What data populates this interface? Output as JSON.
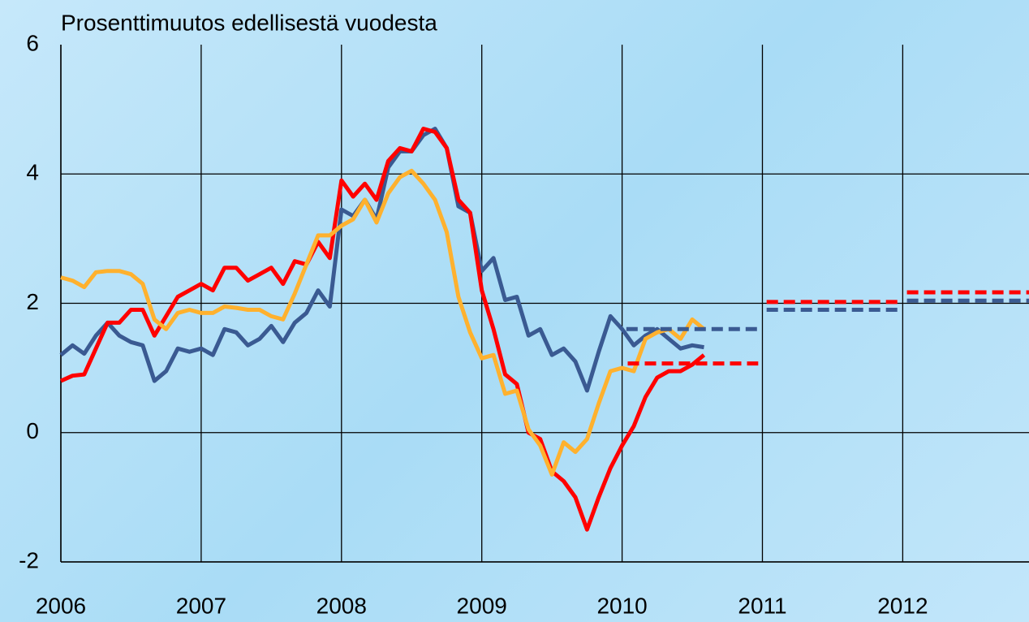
{
  "chart_data": {
    "type": "line",
    "title": "Prosenttimuutos edellisestä vuodesta",
    "xlim": [
      2006,
      2012.9
    ],
    "xticks": [
      2006,
      2007,
      2008,
      2009,
      2010,
      2011,
      2012
    ],
    "ylim": [
      -2,
      6
    ],
    "yticks": [
      -2,
      0,
      2,
      4,
      6
    ],
    "grid": true,
    "series": [
      {
        "color": "#3a5a92",
        "dashed": false,
        "monthly_start": 2006,
        "values": [
          1.2,
          1.35,
          1.22,
          1.5,
          1.7,
          1.5,
          1.4,
          1.35,
          0.8,
          0.95,
          1.3,
          1.25,
          1.3,
          1.2,
          1.6,
          1.55,
          1.35,
          1.45,
          1.65,
          1.4,
          1.7,
          1.85,
          2.2,
          1.95,
          3.45,
          3.35,
          3.6,
          3.3,
          4.1,
          4.35,
          4.35,
          4.6,
          4.7,
          4.4,
          3.5,
          3.4,
          2.5,
          2.7,
          2.05,
          2.1,
          1.5,
          1.6,
          1.2,
          1.3,
          1.1,
          0.65,
          1.25,
          1.8,
          1.6,
          1.35,
          1.5,
          1.6,
          1.45,
          1.3,
          1.35,
          1.32
        ]
      },
      {
        "color": "#ff0000",
        "dashed": false,
        "monthly_start": 2006,
        "values": [
          0.8,
          0.88,
          0.9,
          1.3,
          1.7,
          1.7,
          1.9,
          1.9,
          1.5,
          1.8,
          2.1,
          2.2,
          2.3,
          2.2,
          2.55,
          2.55,
          2.35,
          2.45,
          2.55,
          2.3,
          2.65,
          2.6,
          2.95,
          2.7,
          3.9,
          3.65,
          3.85,
          3.6,
          4.2,
          4.4,
          4.35,
          4.7,
          4.65,
          4.4,
          3.6,
          3.4,
          2.2,
          1.6,
          0.9,
          0.75,
          0.0,
          -0.1,
          -0.6,
          -0.75,
          -1.0,
          -1.5,
          -1.0,
          -0.55,
          -0.2,
          0.1,
          0.55,
          0.85,
          0.95,
          0.95,
          1.05,
          1.2
        ]
      },
      {
        "color": "#ffb12e",
        "dashed": false,
        "monthly_start": 2006,
        "values": [
          2.4,
          2.35,
          2.25,
          2.48,
          2.5,
          2.5,
          2.45,
          2.3,
          1.75,
          1.6,
          1.85,
          1.9,
          1.85,
          1.85,
          1.95,
          1.93,
          1.9,
          1.9,
          1.8,
          1.75,
          2.15,
          2.6,
          3.05,
          3.05,
          3.2,
          3.3,
          3.6,
          3.25,
          3.7,
          3.95,
          4.05,
          3.85,
          3.6,
          3.1,
          2.1,
          1.55,
          1.15,
          1.2,
          0.6,
          0.65,
          0.05,
          -0.2,
          -0.65,
          -0.15,
          -0.3,
          -0.1,
          0.45,
          0.95,
          1.0,
          0.95,
          1.45,
          1.55,
          1.6,
          1.45,
          1.75,
          1.6
        ]
      },
      {
        "color": "#3a5a92",
        "dashed": true,
        "x": [
          2010.03,
          2010.97,
          2011,
          2011.03,
          2011.97,
          2012,
          2012.03,
          2012.9
        ],
        "values": [
          1.6,
          1.6,
          null,
          1.9,
          1.9,
          null,
          2.04,
          2.04
        ]
      },
      {
        "color": "#ff0000",
        "dashed": true,
        "x": [
          2010.04,
          2010.97,
          2011,
          2011.03,
          2011.97,
          2012,
          2012.03,
          2012.9
        ],
        "values": [
          1.07,
          1.07,
          null,
          2.02,
          2.02,
          null,
          2.17,
          2.17
        ]
      }
    ]
  }
}
